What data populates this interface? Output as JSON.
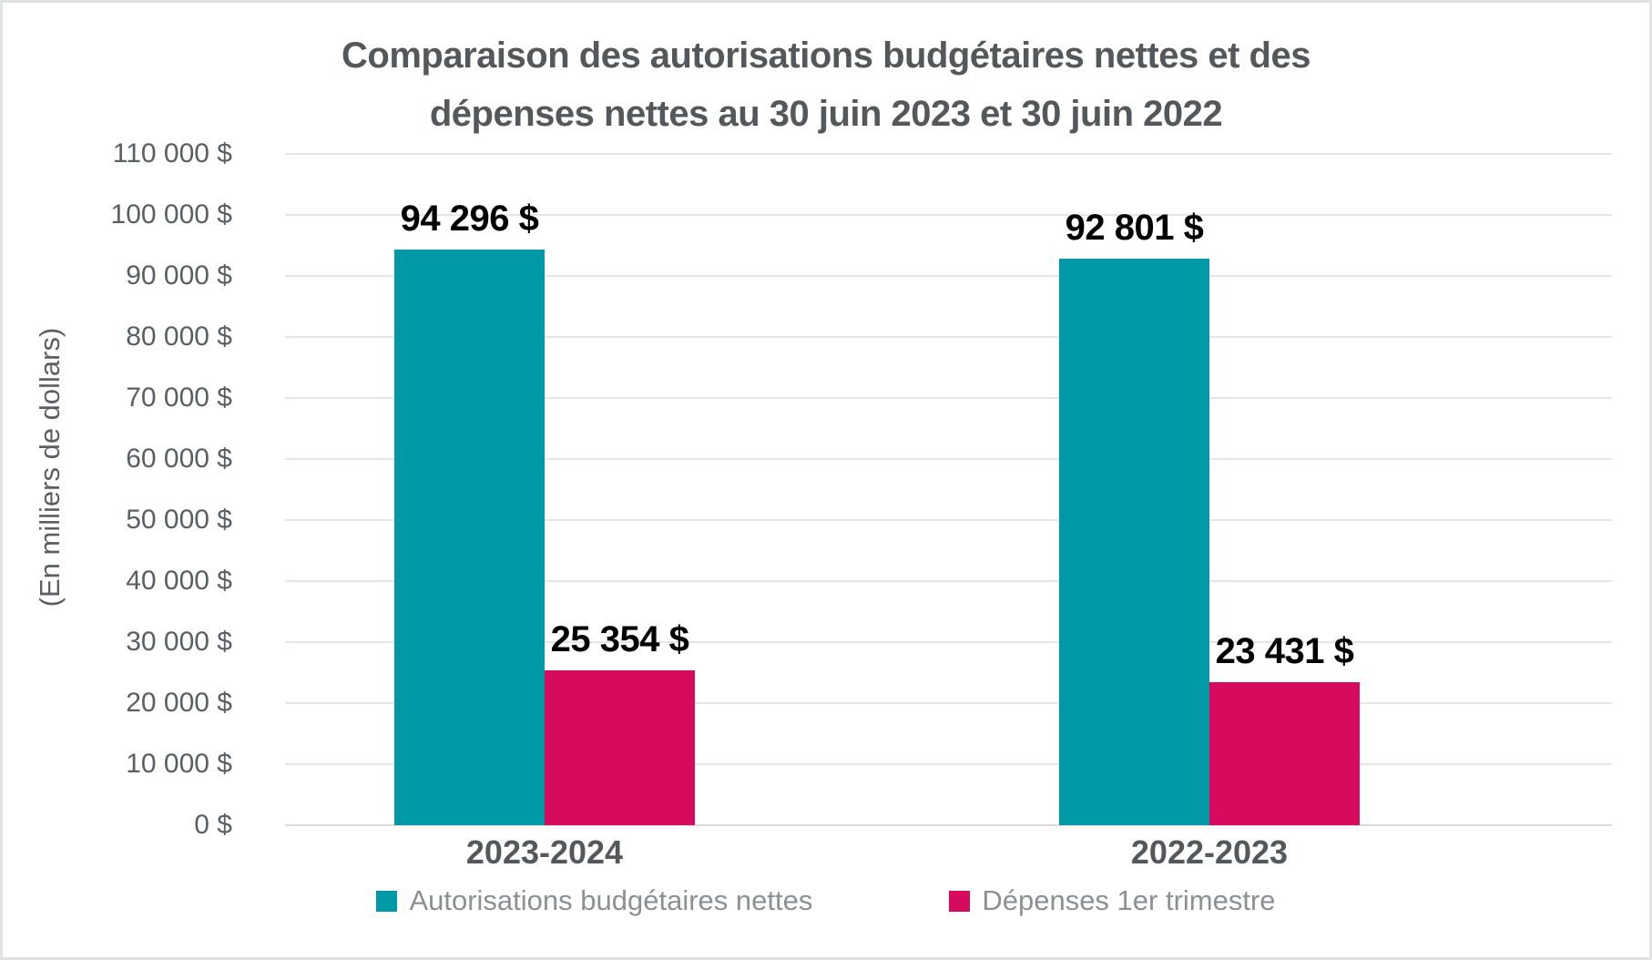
{
  "chart_data": {
    "type": "bar",
    "title_lines": [
      "Comparaison des autorisations budgétaires nettes et des",
      "dépenses nettes au 30 juin 2023 et 30 juin 2022"
    ],
    "ylabel": "(En milliers de dollars)",
    "xlabel": "",
    "categories": [
      "2023-2024",
      "2022-2023"
    ],
    "series": [
      {
        "name": "Autorisations budgétaires nettes",
        "color": "#0099a8",
        "values": [
          94296,
          92801
        ],
        "value_labels": [
          "94 296 $",
          "92 801 $"
        ]
      },
      {
        "name": "Dépenses 1er trimestre",
        "color": "#d60b5e",
        "values": [
          25354,
          23431
        ],
        "value_labels": [
          "25 354 $",
          "23 431 $"
        ]
      }
    ],
    "y_ticks": [
      {
        "value": 0,
        "label": "0 $"
      },
      {
        "value": 10000,
        "label": "10 000 $"
      },
      {
        "value": 20000,
        "label": "20 000 $"
      },
      {
        "value": 30000,
        "label": "30 000 $"
      },
      {
        "value": 40000,
        "label": "40 000 $"
      },
      {
        "value": 50000,
        "label": "50 000 $"
      },
      {
        "value": 60000,
        "label": "60 000 $"
      },
      {
        "value": 70000,
        "label": "70 000 $"
      },
      {
        "value": 80000,
        "label": "80 000 $"
      },
      {
        "value": 90000,
        "label": "90 000 $"
      },
      {
        "value": 100000,
        "label": "100 000 $"
      },
      {
        "value": 110000,
        "label": "110 000 $"
      }
    ],
    "ylim": [
      0,
      110000
    ],
    "grid": true,
    "legend_position": "bottom"
  },
  "colors": {
    "teal": "#0099a8",
    "magenta": "#d60b5e",
    "title_text": "#54585b",
    "axis_text": "#5a5f63",
    "legend_text": "#8c9093",
    "gridline": "#e6e6e6"
  }
}
